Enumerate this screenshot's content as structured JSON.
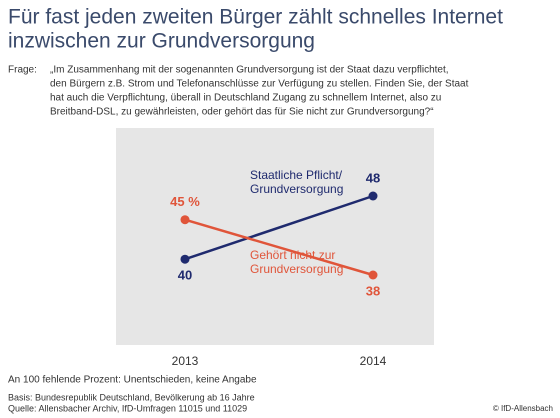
{
  "chart_data": {
    "type": "line",
    "title": [
      "Für fast jeden zweiten Bürger zählt schnelles Internet",
      "inzwischen zur Grundversorgung"
    ],
    "question_label": "Frage:",
    "question": [
      "„Im Zusammenhang mit der sogenannten Grundversorgung ist der Staat dazu verpflichtet,",
      "den Bürgern z.B. Strom und Telefonanschlüsse zur Verfügung zu stellen. Finden Sie, der Staat",
      "hat auch die Verpflichtung, überall in Deutschland Zugang zu schnellem Internet, also zu",
      "Breitband-DSL, zu gewährleisten, oder gehört das für Sie nicht zur Grundversorgung?“"
    ],
    "categories": [
      "2013",
      "2014"
    ],
    "series": [
      {
        "name": "Staatliche Pflicht/ Grundversorgung",
        "color": "#1f2a6e",
        "values": [
          40,
          48
        ],
        "value_labels": [
          "40",
          "48"
        ]
      },
      {
        "name": "Gehört nicht zur Grundversorgung",
        "color": "#e0553a",
        "values": [
          45,
          38
        ],
        "value_labels": [
          "45 %",
          "38"
        ]
      }
    ],
    "notes": [
      "An 100 fehlende Prozent: Unentschieden, keine Angabe",
      "Basis: Bundesrepublik Deutschland, Bevölkerung ab 16 Jahre",
      "Quelle: Allensbacher Archiv, IfD-Umfragen 11015 und 11029"
    ],
    "copyright": "© IfD-Allensbach"
  }
}
